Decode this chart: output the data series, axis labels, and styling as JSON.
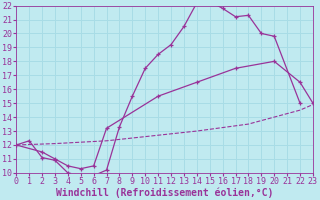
{
  "xlabel": "Windchill (Refroidissement éolien,°C)",
  "xlim": [
    0,
    23
  ],
  "ylim": [
    10,
    22
  ],
  "xticks": [
    0,
    1,
    2,
    3,
    4,
    5,
    6,
    7,
    8,
    9,
    10,
    11,
    12,
    13,
    14,
    15,
    16,
    17,
    18,
    19,
    20,
    21,
    22,
    23
  ],
  "yticks": [
    10,
    11,
    12,
    13,
    14,
    15,
    16,
    17,
    18,
    19,
    20,
    21,
    22
  ],
  "background_color": "#c0eaf0",
  "grid_color": "#a8dce6",
  "line_color": "#993399",
  "curve1_x": [
    0,
    1,
    2,
    3,
    4,
    5,
    6,
    7,
    8,
    9,
    10,
    11,
    12,
    13,
    14,
    15,
    16,
    17,
    18,
    19,
    20,
    22
  ],
  "curve1_y": [
    12.0,
    12.3,
    11.1,
    10.9,
    10.0,
    9.8,
    9.8,
    10.2,
    13.3,
    15.5,
    17.5,
    18.5,
    19.2,
    20.5,
    22.2,
    22.3,
    21.8,
    21.2,
    21.3,
    20.0,
    19.8,
    15.0
  ],
  "curve2_x": [
    0,
    3,
    7,
    11,
    14,
    18,
    22,
    23
  ],
  "curve2_y": [
    12.0,
    12.1,
    12.3,
    12.7,
    13.0,
    13.5,
    14.5,
    14.9
  ],
  "curve3_x": [
    0,
    2,
    3,
    4,
    5,
    6,
    7,
    11,
    14,
    17,
    20,
    22,
    23
  ],
  "curve3_y": [
    12.0,
    11.5,
    11.0,
    10.5,
    10.3,
    10.5,
    13.2,
    15.5,
    16.5,
    17.5,
    18.0,
    16.5,
    15.0
  ],
  "xlabel_fontsize": 7,
  "tick_fontsize": 6
}
